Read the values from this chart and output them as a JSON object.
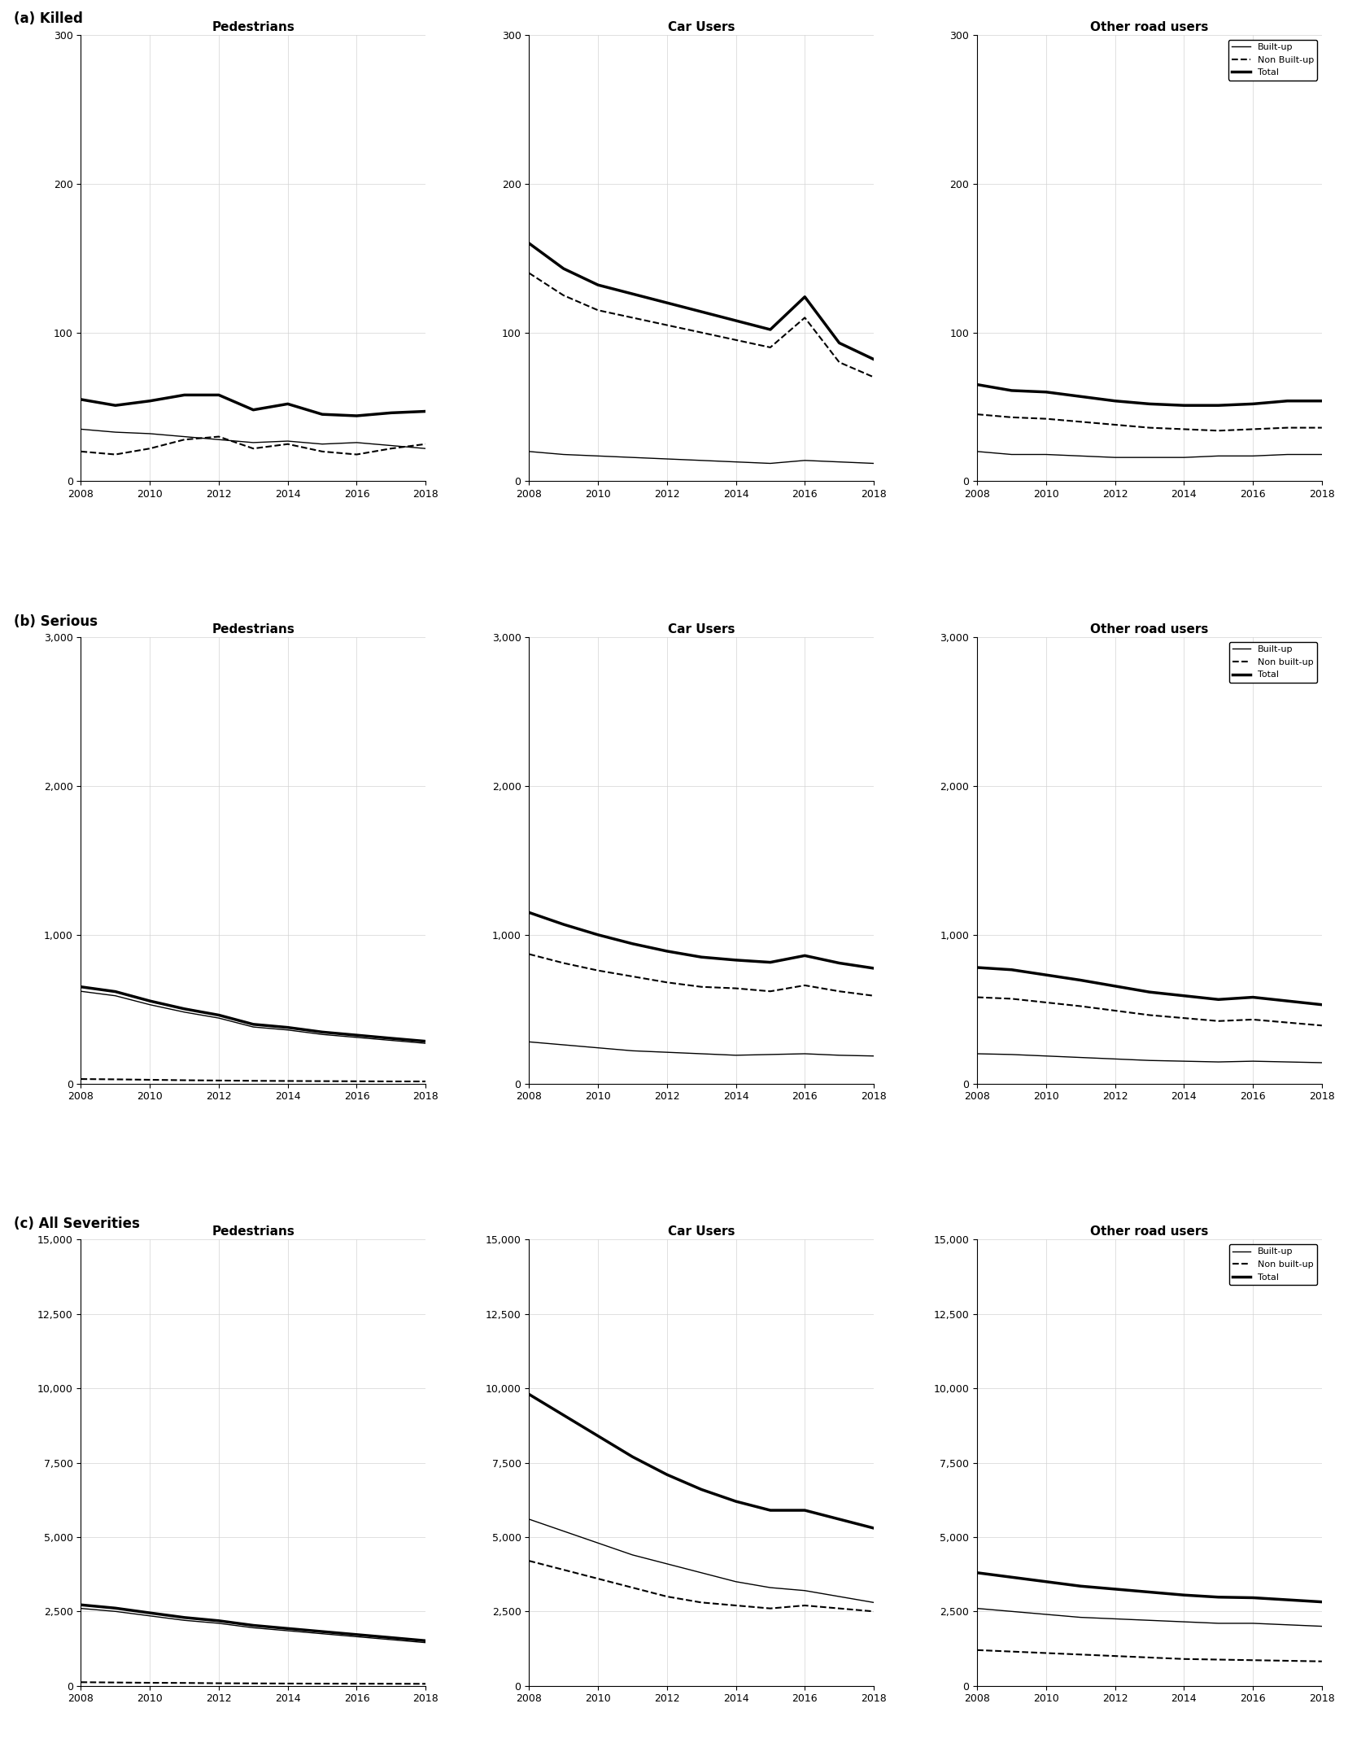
{
  "years": [
    2008,
    2009,
    2010,
    2011,
    2012,
    2013,
    2014,
    2015,
    2016,
    2017,
    2018
  ],
  "section_labels": [
    "(a) Killed",
    "(b) Serious",
    "(c) All Severities"
  ],
  "col_titles": [
    "Pedestrians",
    "Car Users",
    "Other road users"
  ],
  "legend_labels_killed": [
    "Built-up",
    "Non Built-up",
    "Total"
  ],
  "legend_labels_serious": [
    "Built-up",
    "Non built-up",
    "Total"
  ],
  "legend_labels_all": [
    "Built-up",
    "Non built-up",
    "Total"
  ],
  "killed": {
    "pedestrians": {
      "buildup": [
        35,
        33,
        32,
        30,
        28,
        26,
        27,
        25,
        26,
        24,
        22
      ],
      "nonbuildup": [
        20,
        18,
        22,
        28,
        30,
        22,
        25,
        20,
        18,
        22,
        25
      ],
      "total": [
        55,
        51,
        54,
        58,
        58,
        48,
        52,
        45,
        44,
        46,
        47
      ]
    },
    "carusers": {
      "buildup": [
        20,
        18,
        17,
        16,
        15,
        14,
        13,
        12,
        14,
        13,
        12
      ],
      "nonbuildup": [
        140,
        125,
        115,
        110,
        105,
        100,
        95,
        90,
        110,
        80,
        70
      ],
      "total": [
        160,
        143,
        132,
        126,
        120,
        114,
        108,
        102,
        124,
        93,
        82
      ]
    },
    "otherroad": {
      "buildup": [
        20,
        18,
        18,
        17,
        16,
        16,
        16,
        17,
        17,
        18,
        18
      ],
      "nonbuildup": [
        45,
        43,
        42,
        40,
        38,
        36,
        35,
        34,
        35,
        36,
        36
      ],
      "total": [
        65,
        61,
        60,
        57,
        54,
        52,
        51,
        51,
        52,
        54,
        54
      ]
    }
  },
  "serious": {
    "pedestrians": {
      "buildup": [
        620,
        590,
        530,
        480,
        440,
        380,
        360,
        330,
        310,
        290,
        270
      ],
      "nonbuildup": [
        30,
        28,
        25,
        22,
        20,
        18,
        17,
        16,
        15,
        14,
        14
      ],
      "total": [
        650,
        618,
        555,
        502,
        460,
        398,
        377,
        346,
        325,
        304,
        284
      ]
    },
    "carusers": {
      "buildup": [
        280,
        260,
        240,
        220,
        210,
        200,
        190,
        195,
        200,
        190,
        185
      ],
      "nonbuildup": [
        870,
        810,
        760,
        720,
        680,
        650,
        640,
        620,
        660,
        620,
        590
      ],
      "total": [
        1150,
        1070,
        1000,
        940,
        890,
        850,
        830,
        815,
        860,
        810,
        775
      ]
    },
    "otherroad": {
      "buildup": [
        200,
        195,
        185,
        175,
        165,
        155,
        150,
        145,
        150,
        145,
        140
      ],
      "nonbuildup": [
        580,
        570,
        545,
        520,
        490,
        460,
        440,
        420,
        430,
        410,
        390
      ],
      "total": [
        780,
        765,
        730,
        695,
        655,
        615,
        590,
        565,
        580,
        555,
        530
      ]
    }
  },
  "allsev": {
    "pedestrians": {
      "buildup": [
        2600,
        2500,
        2350,
        2200,
        2100,
        1950,
        1850,
        1750,
        1650,
        1550,
        1450
      ],
      "nonbuildup": [
        120,
        110,
        100,
        95,
        85,
        80,
        75,
        72,
        70,
        68,
        65
      ],
      "total": [
        2720,
        2610,
        2450,
        2295,
        2185,
        2030,
        1925,
        1822,
        1720,
        1618,
        1515
      ]
    },
    "carusers": {
      "buildup": [
        5600,
        5200,
        4800,
        4400,
        4100,
        3800,
        3500,
        3300,
        3200,
        3000,
        2800
      ],
      "nonbuildup": [
        4200,
        3900,
        3600,
        3300,
        3000,
        2800,
        2700,
        2600,
        2700,
        2600,
        2500
      ],
      "total": [
        9800,
        9100,
        8400,
        7700,
        7100,
        6600,
        6200,
        5900,
        5900,
        5600,
        5300
      ]
    },
    "otherroad": {
      "buildup": [
        2600,
        2500,
        2400,
        2300,
        2250,
        2200,
        2150,
        2100,
        2100,
        2050,
        2000
      ],
      "nonbuildup": [
        1200,
        1150,
        1100,
        1050,
        1000,
        950,
        900,
        880,
        860,
        840,
        820
      ],
      "total": [
        3800,
        3650,
        3500,
        3350,
        3250,
        3150,
        3050,
        2980,
        2960,
        2890,
        2820
      ]
    }
  },
  "ylims": {
    "killed": [
      0,
      300
    ],
    "serious": [
      0,
      3000
    ],
    "allsev": [
      0,
      15000
    ]
  },
  "yticks": {
    "killed": [
      0,
      100,
      200,
      300
    ],
    "serious": [
      0,
      1000,
      2000,
      3000
    ],
    "allsev": [
      0,
      2500,
      5000,
      7500,
      10000,
      12500,
      15000
    ]
  }
}
